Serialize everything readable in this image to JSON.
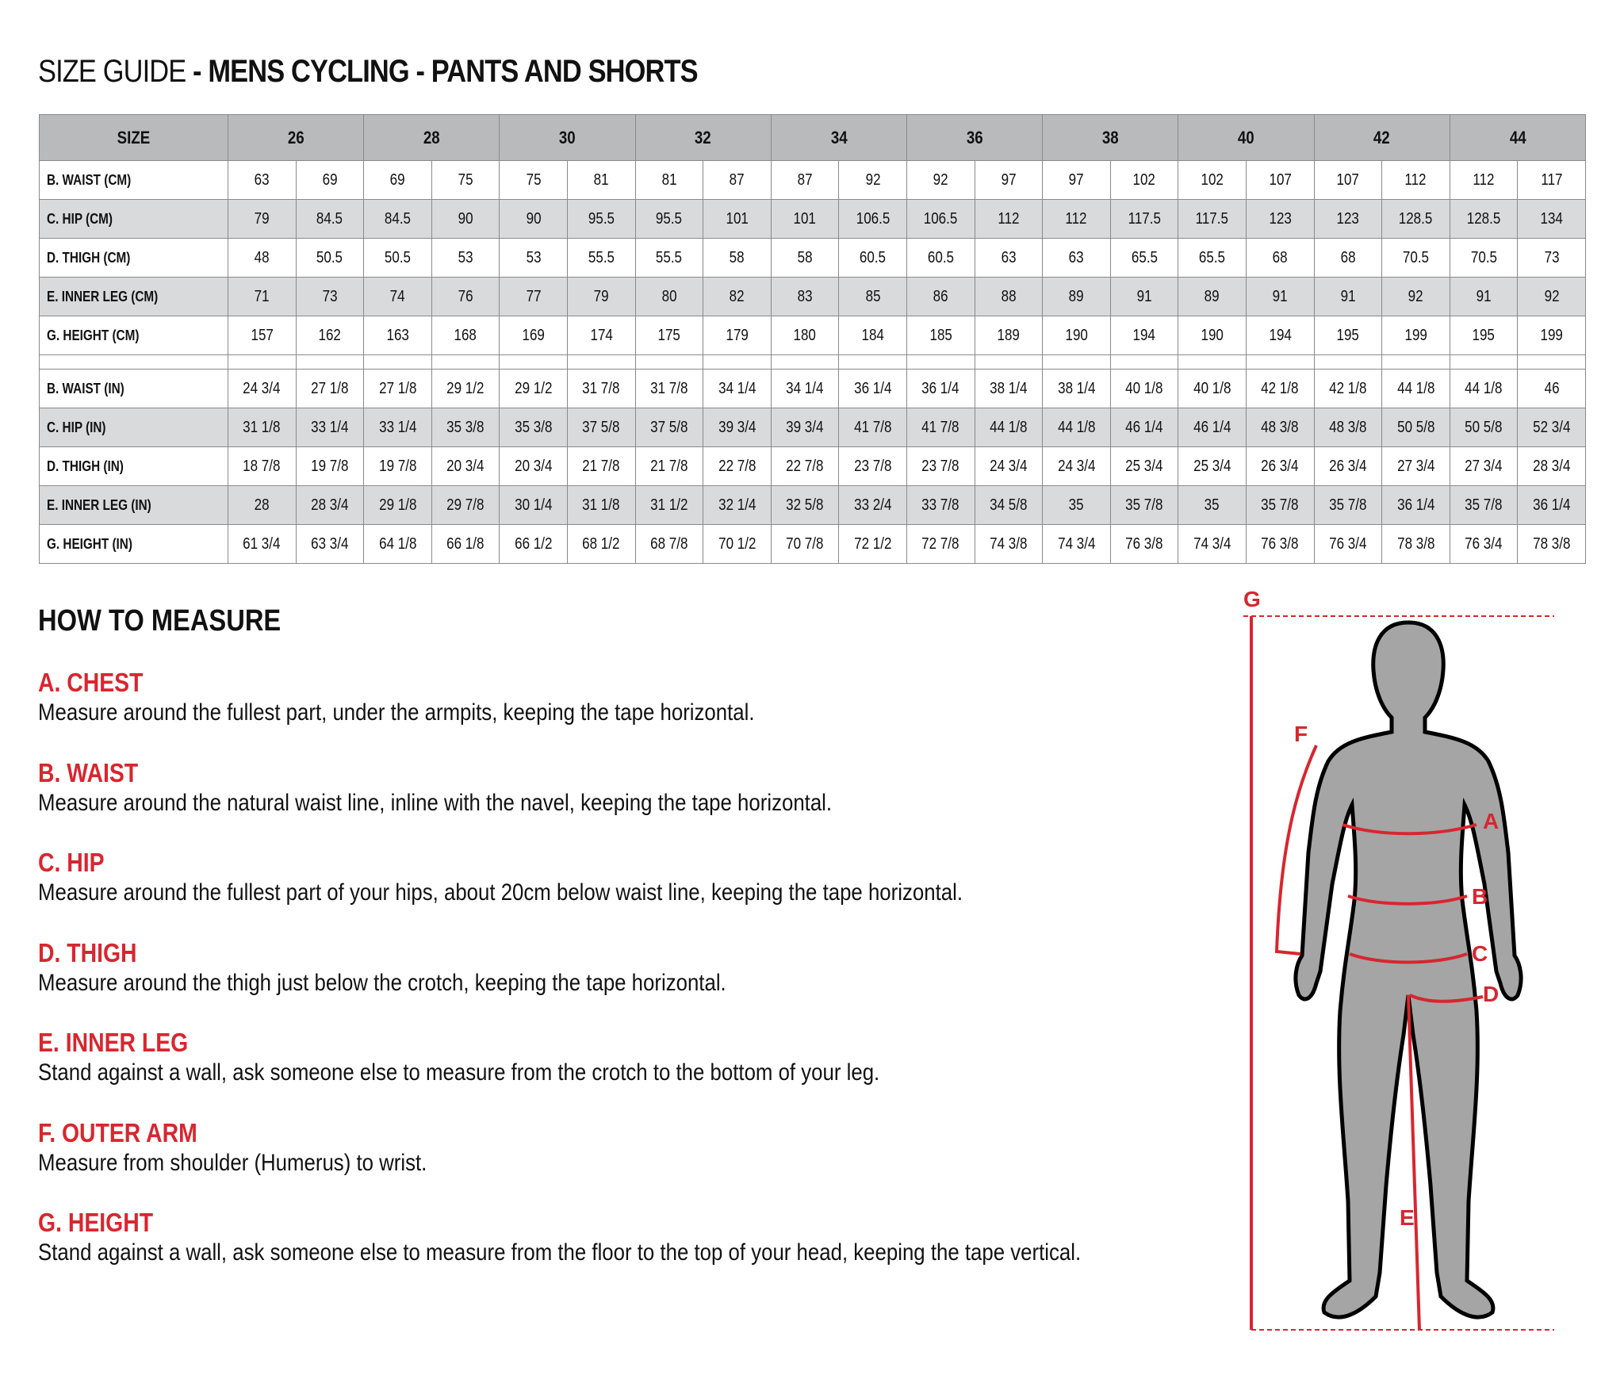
{
  "title": {
    "light": "SIZE GUIDE",
    "bold": " - MENS CYCLING - PANTS AND SHORTS"
  },
  "table": {
    "header_label": "SIZE",
    "sizes": [
      "26",
      "28",
      "30",
      "32",
      "34",
      "36",
      "38",
      "40",
      "42",
      "44"
    ],
    "cm_rows": [
      {
        "label": "B. WAIST (CM)",
        "values": [
          "63",
          "69",
          "69",
          "75",
          "75",
          "81",
          "81",
          "87",
          "87",
          "92",
          "92",
          "97",
          "97",
          "102",
          "102",
          "107",
          "107",
          "112",
          "112",
          "117"
        ]
      },
      {
        "label": "C. HIP (CM)",
        "values": [
          "79",
          "84.5",
          "84.5",
          "90",
          "90",
          "95.5",
          "95.5",
          "101",
          "101",
          "106.5",
          "106.5",
          "112",
          "112",
          "117.5",
          "117.5",
          "123",
          "123",
          "128.5",
          "128.5",
          "134"
        ]
      },
      {
        "label": "D. THIGH (CM)",
        "values": [
          "48",
          "50.5",
          "50.5",
          "53",
          "53",
          "55.5",
          "55.5",
          "58",
          "58",
          "60.5",
          "60.5",
          "63",
          "63",
          "65.5",
          "65.5",
          "68",
          "68",
          "70.5",
          "70.5",
          "73"
        ]
      },
      {
        "label": "E. INNER LEG (CM)",
        "values": [
          "71",
          "73",
          "74",
          "76",
          "77",
          "79",
          "80",
          "82",
          "83",
          "85",
          "86",
          "88",
          "89",
          "91",
          "89",
          "91",
          "91",
          "92",
          "91",
          "92"
        ]
      },
      {
        "label": "G. HEIGHT (CM)",
        "values": [
          "157",
          "162",
          "163",
          "168",
          "169",
          "174",
          "175",
          "179",
          "180",
          "184",
          "185",
          "189",
          "190",
          "194",
          "190",
          "194",
          "195",
          "199",
          "195",
          "199"
        ]
      }
    ],
    "in_rows": [
      {
        "label": "B. WAIST (IN)",
        "values": [
          "24 3/4",
          "27 1/8",
          "27 1/8",
          "29 1/2",
          "29 1/2",
          "31 7/8",
          "31 7/8",
          "34 1/4",
          "34 1/4",
          "36 1/4",
          "36 1/4",
          "38 1/4",
          "38 1/4",
          "40 1/8",
          "40 1/8",
          "42 1/8",
          "42 1/8",
          "44 1/8",
          "44 1/8",
          "46"
        ]
      },
      {
        "label": "C. HIP (IN)",
        "values": [
          "31 1/8",
          "33 1/4",
          "33 1/4",
          "35 3/8",
          "35 3/8",
          "37 5/8",
          "37 5/8",
          "39 3/4",
          "39 3/4",
          "41 7/8",
          "41 7/8",
          "44 1/8",
          "44 1/8",
          "46 1/4",
          "46 1/4",
          "48 3/8",
          "48 3/8",
          "50 5/8",
          "50 5/8",
          "52 3/4"
        ]
      },
      {
        "label": "D. THIGH (IN)",
        "values": [
          "18 7/8",
          "19 7/8",
          "19 7/8",
          "20 3/4",
          "20 3/4",
          "21 7/8",
          "21 7/8",
          "22 7/8",
          "22 7/8",
          "23 7/8",
          "23 7/8",
          "24 3/4",
          "24 3/4",
          "25 3/4",
          "25 3/4",
          "26 3/4",
          "26 3/4",
          "27 3/4",
          "27 3/4",
          "28 3/4"
        ]
      },
      {
        "label": "E. INNER LEG (IN)",
        "values": [
          "28",
          "28 3/4",
          "29 1/8",
          "29 7/8",
          "30 1/4",
          "31 1/8",
          "31 1/2",
          "32 1/4",
          "32 5/8",
          "33 2/4",
          "33 7/8",
          "34 5/8",
          "35",
          "35 7/8",
          "35",
          "35 7/8",
          "35 7/8",
          "36 1/4",
          "35 7/8",
          "36 1/4"
        ]
      },
      {
        "label": "G. HEIGHT (IN)",
        "values": [
          "61 3/4",
          "63 3/4",
          "64 1/8",
          "66 1/8",
          "66 1/2",
          "68 1/2",
          "68 7/8",
          "70 1/2",
          "70 7/8",
          "72 1/2",
          "72 7/8",
          "74 3/8",
          "74 3/4",
          "76 3/8",
          "74 3/4",
          "76 3/8",
          "76 3/4",
          "78 3/8",
          "76 3/4",
          "78 3/8"
        ]
      }
    ]
  },
  "how_to_measure": {
    "heading": "HOW TO MEASURE",
    "sections": [
      {
        "title": "A. CHEST",
        "text": "Measure around the fullest part, under the armpits, keeping the tape horizontal."
      },
      {
        "title": "B. WAIST",
        "text": "Measure around the natural waist line, inline with the navel, keeping the tape horizontal."
      },
      {
        "title": "C. HIP",
        "text": "Measure around the fullest part of your hips, about 20cm below waist line, keeping the tape horizontal."
      },
      {
        "title": "D. THIGH",
        "text": "Measure around the thigh just below the crotch, keeping the tape horizontal."
      },
      {
        "title": "E. INNER LEG",
        "text": "Stand against a wall, ask someone else to measure from the crotch to the bottom of your leg."
      },
      {
        "title": "F. OUTER ARM",
        "text": "Measure from shoulder (Humerus) to wrist."
      },
      {
        "title": "G. HEIGHT",
        "text": "Stand against a wall, ask someone else to measure from the floor to the top of your head, keeping the tape vertical."
      }
    ]
  },
  "figure": {
    "labels": [
      "G",
      "F",
      "A",
      "B",
      "C",
      "D",
      "E"
    ],
    "accent": "#d8262f",
    "body_color": "#a5a5a5"
  }
}
